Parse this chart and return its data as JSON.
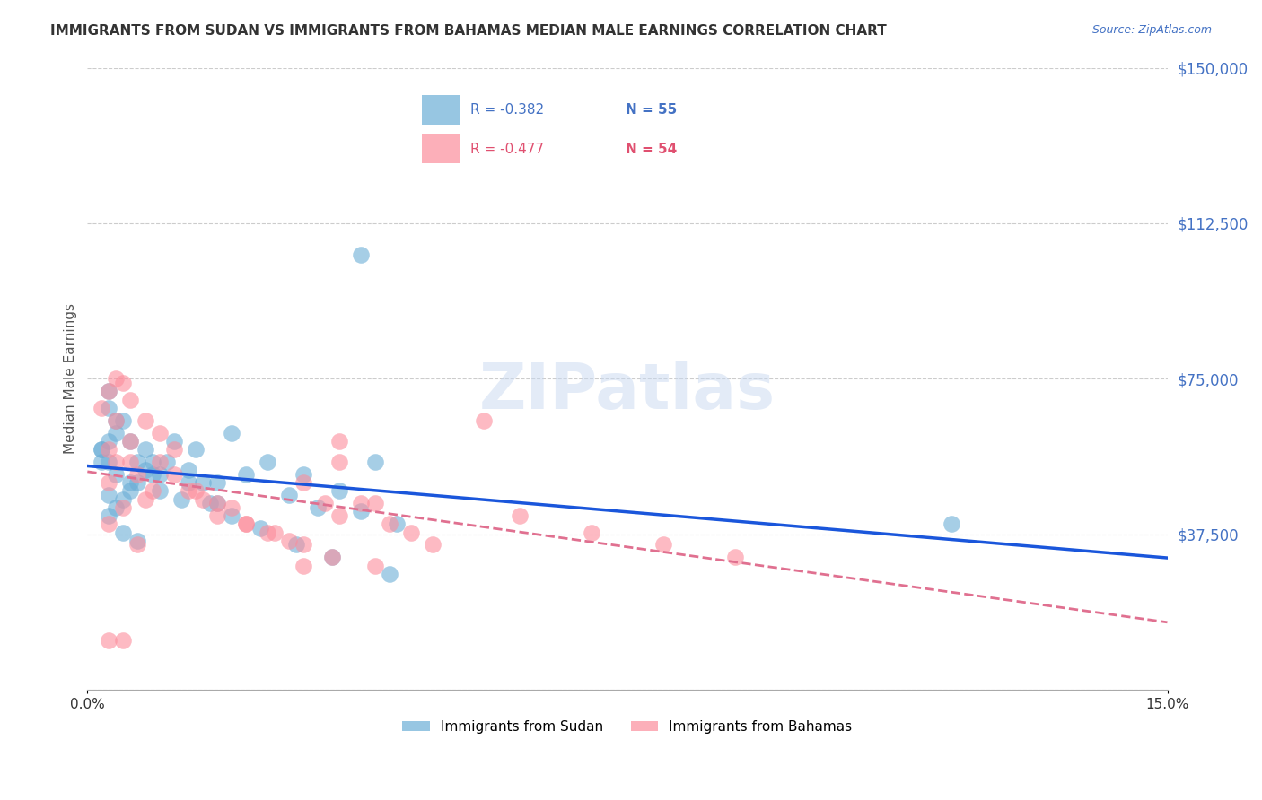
{
  "title": "IMMIGRANTS FROM SUDAN VS IMMIGRANTS FROM BAHAMAS MEDIAN MALE EARNINGS CORRELATION CHART",
  "source": "Source: ZipAtlas.com",
  "ylabel": "Median Male Earnings",
  "xlim": [
    0.0,
    0.15
  ],
  "ylim": [
    0,
    150000
  ],
  "yticks": [
    0,
    37500,
    75000,
    112500,
    150000
  ],
  "ytick_labels": [
    "",
    "$37,500",
    "$75,000",
    "$112,500",
    "$150,000"
  ],
  "xtick_labels": [
    "0.0%",
    "15.0%"
  ],
  "sudan_color": "#6baed6",
  "bahamas_color": "#fc8d9c",
  "sudan_R": -0.382,
  "sudan_N": 55,
  "bahamas_R": -0.477,
  "bahamas_N": 54,
  "trend_blue": "#1a56db",
  "trend_pink": "#e07090",
  "watermark": "ZIPatlas",
  "legend_label1": "Immigrants from Sudan",
  "legend_label2": "Immigrants from Bahamas",
  "sudan_x": [
    0.003,
    0.004,
    0.002,
    0.005,
    0.003,
    0.004,
    0.006,
    0.007,
    0.008,
    0.003,
    0.004,
    0.005,
    0.006,
    0.002,
    0.003,
    0.008,
    0.009,
    0.01,
    0.012,
    0.014,
    0.015,
    0.018,
    0.02,
    0.025,
    0.03,
    0.035,
    0.04,
    0.003,
    0.004,
    0.006,
    0.007,
    0.009,
    0.01,
    0.013,
    0.016,
    0.018,
    0.022,
    0.028,
    0.032,
    0.038,
    0.043,
    0.003,
    0.005,
    0.007,
    0.011,
    0.014,
    0.017,
    0.02,
    0.024,
    0.029,
    0.034,
    0.038,
    0.042,
    0.12,
    0.002
  ],
  "sudan_y": [
    55000,
    62000,
    58000,
    65000,
    60000,
    52000,
    48000,
    50000,
    53000,
    47000,
    44000,
    46000,
    50000,
    55000,
    68000,
    58000,
    55000,
    52000,
    60000,
    53000,
    58000,
    50000,
    62000,
    55000,
    52000,
    48000,
    55000,
    72000,
    65000,
    60000,
    55000,
    52000,
    48000,
    46000,
    50000,
    45000,
    52000,
    47000,
    44000,
    43000,
    40000,
    42000,
    38000,
    36000,
    55000,
    50000,
    45000,
    42000,
    39000,
    35000,
    32000,
    105000,
    28000,
    40000,
    58000
  ],
  "bahamas_x": [
    0.002,
    0.003,
    0.004,
    0.003,
    0.005,
    0.006,
    0.004,
    0.003,
    0.007,
    0.008,
    0.009,
    0.006,
    0.005,
    0.003,
    0.01,
    0.012,
    0.014,
    0.016,
    0.018,
    0.02,
    0.022,
    0.025,
    0.028,
    0.03,
    0.033,
    0.035,
    0.004,
    0.006,
    0.008,
    0.01,
    0.012,
    0.015,
    0.018,
    0.022,
    0.026,
    0.03,
    0.034,
    0.04,
    0.038,
    0.042,
    0.048,
    0.035,
    0.055,
    0.003,
    0.005,
    0.007,
    0.06,
    0.07,
    0.08,
    0.09,
    0.03,
    0.035,
    0.04,
    0.045
  ],
  "bahamas_y": [
    68000,
    72000,
    65000,
    58000,
    74000,
    60000,
    55000,
    50000,
    52000,
    46000,
    48000,
    55000,
    44000,
    40000,
    62000,
    58000,
    48000,
    46000,
    42000,
    44000,
    40000,
    38000,
    36000,
    50000,
    45000,
    42000,
    75000,
    70000,
    65000,
    55000,
    52000,
    48000,
    45000,
    40000,
    38000,
    35000,
    32000,
    30000,
    45000,
    40000,
    35000,
    55000,
    65000,
    12000,
    12000,
    35000,
    42000,
    38000,
    35000,
    32000,
    30000,
    60000,
    45000,
    38000
  ]
}
